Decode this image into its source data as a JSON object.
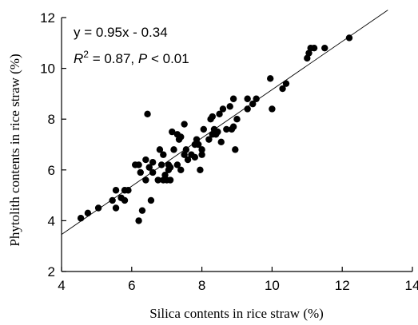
{
  "chart_data": {
    "type": "scatter",
    "title": "",
    "xlabel": "Silica contents in rice straw (%)",
    "ylabel": "Phytolith contents in rice straw (%)",
    "xlim": [
      4,
      14
    ],
    "ylim": [
      2,
      12
    ],
    "xticks": [
      "4",
      "6",
      "8",
      "10",
      "12",
      "14"
    ],
    "yticks": [
      "2",
      "4",
      "6",
      "8",
      "10",
      "12"
    ],
    "grid": false,
    "legend": "none",
    "annotations": {
      "equation": "y = 0.95x - 0.34",
      "r2_prefix": "R",
      "r2_exponent": "2",
      "r2_value": " = 0.87, ",
      "p_symbol": "P",
      "p_value": " < 0.01"
    },
    "fit_line": {
      "slope": 0.95,
      "intercept": -0.34,
      "x_range": [
        4,
        13.3
      ]
    },
    "marker_color": "#000000",
    "series": [
      {
        "points": [
          [
            4.55,
            4.1
          ],
          [
            4.75,
            4.3
          ],
          [
            5.05,
            4.5
          ],
          [
            5.45,
            4.8
          ],
          [
            5.55,
            4.5
          ],
          [
            5.55,
            5.2
          ],
          [
            5.7,
            4.9
          ],
          [
            5.8,
            4.8
          ],
          [
            5.8,
            5.2
          ],
          [
            5.9,
            5.2
          ],
          [
            6.1,
            6.2
          ],
          [
            6.2,
            6.2
          ],
          [
            6.2,
            4.0
          ],
          [
            6.25,
            5.9
          ],
          [
            6.3,
            4.4
          ],
          [
            6.4,
            5.6
          ],
          [
            6.4,
            6.4
          ],
          [
            6.45,
            8.2
          ],
          [
            6.5,
            6.1
          ],
          [
            6.55,
            4.8
          ],
          [
            6.6,
            5.9
          ],
          [
            6.6,
            6.3
          ],
          [
            6.75,
            5.6
          ],
          [
            6.8,
            6.8
          ],
          [
            6.85,
            6.2
          ],
          [
            6.9,
            5.6
          ],
          [
            6.9,
            6.6
          ],
          [
            6.95,
            5.8
          ],
          [
            7.0,
            5.6
          ],
          [
            7.05,
            6.2
          ],
          [
            7.05,
            6.0
          ],
          [
            7.1,
            5.6
          ],
          [
            7.1,
            6.1
          ],
          [
            7.15,
            7.5
          ],
          [
            7.2,
            6.8
          ],
          [
            7.3,
            6.2
          ],
          [
            7.3,
            7.4
          ],
          [
            7.35,
            7.2
          ],
          [
            7.4,
            7.3
          ],
          [
            7.4,
            6.0
          ],
          [
            7.5,
            6.6
          ],
          [
            7.5,
            7.8
          ],
          [
            7.55,
            6.8
          ],
          [
            7.6,
            6.4
          ],
          [
            7.7,
            6.6
          ],
          [
            7.8,
            7.0
          ],
          [
            7.8,
            6.5
          ],
          [
            7.85,
            7.2
          ],
          [
            7.9,
            7.0
          ],
          [
            7.95,
            6.0
          ],
          [
            8.0,
            6.6
          ],
          [
            8.0,
            6.8
          ],
          [
            8.05,
            7.6
          ],
          [
            8.2,
            7.2
          ],
          [
            8.25,
            8.0
          ],
          [
            8.3,
            7.4
          ],
          [
            8.3,
            8.1
          ],
          [
            8.35,
            7.6
          ],
          [
            8.4,
            7.4
          ],
          [
            8.45,
            7.5
          ],
          [
            8.5,
            8.2
          ],
          [
            8.55,
            7.1
          ],
          [
            8.6,
            8.4
          ],
          [
            8.7,
            7.6
          ],
          [
            8.8,
            8.5
          ],
          [
            8.85,
            7.6
          ],
          [
            8.9,
            7.7
          ],
          [
            8.9,
            8.8
          ],
          [
            8.95,
            6.8
          ],
          [
            9.0,
            8.0
          ],
          [
            9.3,
            8.4
          ],
          [
            9.3,
            8.8
          ],
          [
            9.45,
            8.6
          ],
          [
            9.55,
            8.8
          ],
          [
            9.95,
            9.6
          ],
          [
            10.0,
            8.4
          ],
          [
            10.3,
            9.2
          ],
          [
            10.4,
            9.4
          ],
          [
            11.0,
            10.4
          ],
          [
            11.05,
            10.6
          ],
          [
            11.1,
            10.8
          ],
          [
            11.2,
            10.8
          ],
          [
            11.5,
            10.8
          ],
          [
            12.2,
            11.2
          ]
        ]
      }
    ]
  }
}
